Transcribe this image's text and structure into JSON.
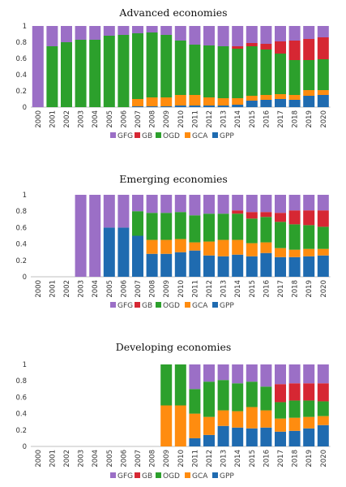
{
  "colors": {
    "GFG": "#9B6FC6",
    "GB": "#D62733",
    "OGD": "#2CA02C",
    "GCA": "#FF8C0F",
    "GPP": "#1F6BB0"
  },
  "legend": {
    "items": [
      "GFG",
      "GB",
      "OGD",
      "GCA",
      "GPP"
    ],
    "marker": "■"
  },
  "chart_data": [
    {
      "type": "bar",
      "stacked": true,
      "title": "Advanced economies",
      "xlabel": "",
      "ylabel": "",
      "ylim": [
        0,
        1
      ],
      "yticks": [
        "0",
        "0.2",
        "0.4",
        "0.6",
        "0.8",
        "1"
      ],
      "grid": false,
      "legend_position": "bottom",
      "categories": [
        "2000",
        "2001",
        "2002",
        "2003",
        "2004",
        "2005",
        "2006",
        "2007",
        "2008",
        "2009",
        "2010",
        "2011",
        "2012",
        "2013",
        "2014",
        "2015",
        "2016",
        "2017",
        "2018",
        "2019",
        "2020"
      ],
      "series": [
        {
          "name": "GPP",
          "values": [
            0,
            0,
            0,
            0,
            0,
            0,
            0,
            0.01,
            0.01,
            0.01,
            0.02,
            0.02,
            0.02,
            0.02,
            0.03,
            0.08,
            0.09,
            0.1,
            0.09,
            0.14,
            0.15
          ]
        },
        {
          "name": "GCA",
          "values": [
            0,
            0,
            0,
            0,
            0,
            0,
            0,
            0.09,
            0.11,
            0.11,
            0.13,
            0.13,
            0.1,
            0.09,
            0.08,
            0.06,
            0.06,
            0.06,
            0.06,
            0.07,
            0.06
          ]
        },
        {
          "name": "OGD",
          "values": [
            0,
            0.75,
            0.8,
            0.83,
            0.83,
            0.88,
            0.89,
            0.81,
            0.8,
            0.77,
            0.67,
            0.62,
            0.64,
            0.64,
            0.61,
            0.61,
            0.56,
            0.5,
            0.43,
            0.37,
            0.38
          ]
        },
        {
          "name": "GB",
          "values": [
            0,
            0,
            0,
            0,
            0,
            0,
            0,
            0,
            0,
            0,
            0,
            0,
            0,
            0,
            0.03,
            0.04,
            0.07,
            0.15,
            0.24,
            0.26,
            0.27
          ]
        },
        {
          "name": "GFG",
          "values": [
            1,
            0.25,
            0.2,
            0.17,
            0.17,
            0.12,
            0.11,
            0.09,
            0.08,
            0.11,
            0.18,
            0.23,
            0.24,
            0.25,
            0.25,
            0.21,
            0.22,
            0.19,
            0.18,
            0.16,
            0.14
          ]
        }
      ]
    },
    {
      "type": "bar",
      "stacked": true,
      "title": "Emerging economies",
      "xlabel": "",
      "ylabel": "",
      "ylim": [
        0,
        1
      ],
      "yticks": [
        "0",
        "0.2",
        "0.4",
        "0.6",
        "0.8",
        "1"
      ],
      "grid": false,
      "legend_position": "bottom",
      "categories": [
        "2000",
        "2001",
        "2002",
        "2003",
        "2004",
        "2005",
        "2006",
        "2007",
        "2008",
        "2009",
        "2010",
        "2011",
        "2012",
        "2013",
        "2014",
        "2015",
        "2016",
        "2017",
        "2018",
        "2019",
        "2020"
      ],
      "series": [
        {
          "name": "GPP",
          "values": [
            0,
            0,
            0,
            0,
            0,
            0.6,
            0.6,
            0.5,
            0.28,
            0.28,
            0.3,
            0.32,
            0.26,
            0.25,
            0.27,
            0.25,
            0.29,
            0.24,
            0.24,
            0.25,
            0.26
          ]
        },
        {
          "name": "GCA",
          "values": [
            0,
            0,
            0,
            0,
            0,
            0,
            0,
            0,
            0.17,
            0.17,
            0.16,
            0.1,
            0.17,
            0.2,
            0.18,
            0.16,
            0.13,
            0.11,
            0.09,
            0.09,
            0.08
          ]
        },
        {
          "name": "OGD",
          "values": [
            0,
            0,
            0,
            0,
            0,
            0,
            0,
            0.3,
            0.33,
            0.33,
            0.33,
            0.33,
            0.34,
            0.32,
            0.32,
            0.3,
            0.31,
            0.32,
            0.31,
            0.29,
            0.27
          ]
        },
        {
          "name": "GB",
          "values": [
            0,
            0,
            0,
            0,
            0,
            0,
            0,
            0,
            0,
            0,
            0,
            0,
            0,
            0,
            0.04,
            0.08,
            0.06,
            0.11,
            0.17,
            0.18,
            0.2
          ]
        },
        {
          "name": "GFG",
          "values": [
            0,
            0,
            0,
            1,
            1,
            0.4,
            0.4,
            0.2,
            0.22,
            0.22,
            0.21,
            0.25,
            0.23,
            0.23,
            0.19,
            0.21,
            0.21,
            0.22,
            0.19,
            0.19,
            0.19
          ]
        }
      ]
    },
    {
      "type": "bar",
      "stacked": true,
      "title": "Developing economies",
      "xlabel": "",
      "ylabel": "",
      "ylim": [
        0,
        1
      ],
      "yticks": [
        "0",
        "0.2",
        "0.4",
        "0.6",
        "0.8",
        "1"
      ],
      "grid": false,
      "legend_position": "bottom",
      "categories": [
        "2000",
        "2001",
        "2002",
        "2003",
        "2004",
        "2005",
        "2006",
        "2007",
        "2008",
        "2009",
        "2010",
        "2011",
        "2012",
        "2013",
        "2014",
        "2015",
        "2016",
        "2017",
        "2018",
        "2019",
        "2020"
      ],
      "series": [
        {
          "name": "GPP",
          "values": [
            0,
            0,
            0,
            0,
            0,
            0,
            0,
            0,
            0,
            0,
            0,
            0.1,
            0.14,
            0.25,
            0.23,
            0.22,
            0.23,
            0.18,
            0.19,
            0.22,
            0.26
          ]
        },
        {
          "name": "GCA",
          "values": [
            0,
            0,
            0,
            0,
            0,
            0,
            0,
            0,
            0,
            0.5,
            0.5,
            0.3,
            0.22,
            0.19,
            0.2,
            0.26,
            0.21,
            0.16,
            0.16,
            0.14,
            0.11
          ]
        },
        {
          "name": "OGD",
          "values": [
            0,
            0,
            0,
            0,
            0,
            0,
            0,
            0,
            0,
            0.5,
            0.5,
            0.3,
            0.43,
            0.37,
            0.34,
            0.31,
            0.29,
            0.2,
            0.21,
            0.2,
            0.18
          ]
        },
        {
          "name": "GB",
          "values": [
            0,
            0,
            0,
            0,
            0,
            0,
            0,
            0,
            0,
            0,
            0,
            0,
            0,
            0,
            0,
            0,
            0,
            0.22,
            0.21,
            0.21,
            0.22
          ]
        },
        {
          "name": "GFG",
          "values": [
            0,
            0,
            0,
            0,
            0,
            0,
            0,
            0,
            0,
            0,
            0,
            0.3,
            0.21,
            0.19,
            0.23,
            0.21,
            0.27,
            0.24,
            0.23,
            0.23,
            0.23
          ]
        }
      ]
    }
  ]
}
